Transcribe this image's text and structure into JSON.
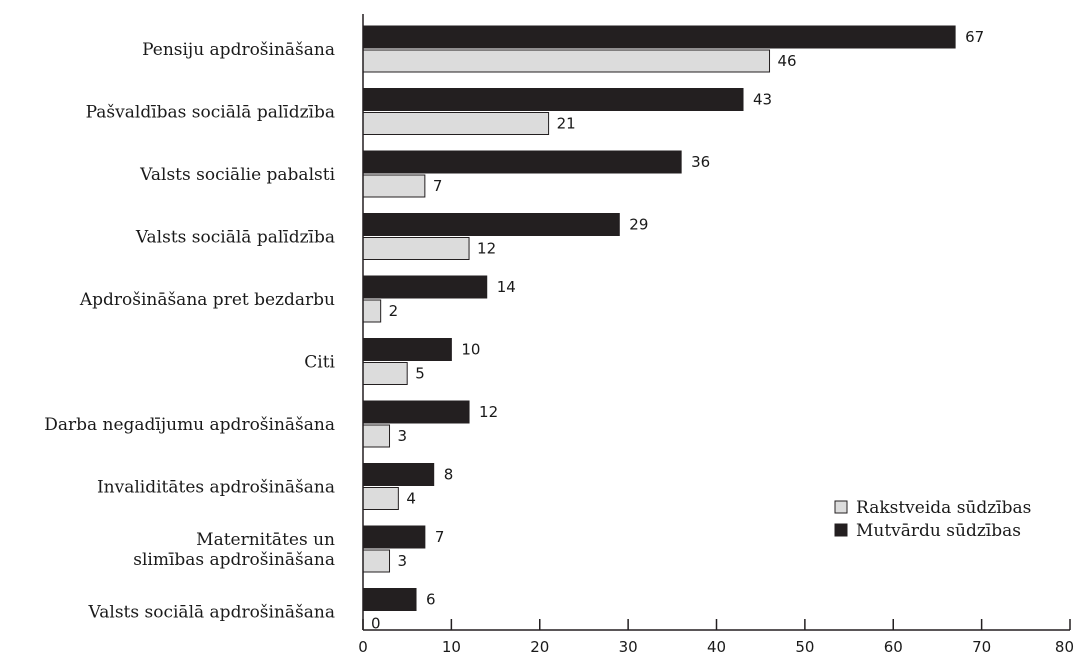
{
  "chart_data": {
    "type": "bar",
    "orientation": "horizontal",
    "categories": [
      [
        "Pensiju apdrošināšana"
      ],
      [
        "Pašvaldības sociālā palīdzība"
      ],
      [
        "Valsts sociālie pabalsti"
      ],
      [
        "Valsts sociālā palīdzība"
      ],
      [
        "Apdrošināšana pret bezdarbu"
      ],
      [
        "Citi"
      ],
      [
        "Darba negadījumu apdrošināšana"
      ],
      [
        "Invaliditātes apdrošināšana"
      ],
      [
        "Maternitātes un",
        "slimības apdrošināšana"
      ],
      [
        "Valsts sociālā apdrošināšana"
      ]
    ],
    "series": [
      {
        "name": "Mutvārdu sūdzības",
        "color": "#231f20",
        "values": [
          67,
          43,
          36,
          29,
          14,
          10,
          12,
          8,
          7,
          6
        ]
      },
      {
        "name": "Rakstveida sūdzības",
        "color": "#dcdcdc",
        "values": [
          46,
          21,
          7,
          12,
          2,
          5,
          3,
          4,
          3,
          0
        ]
      }
    ],
    "xlim": [
      0,
      80
    ],
    "xticks": [
      0,
      10,
      20,
      30,
      40,
      50,
      60,
      70,
      80
    ],
    "legend": {
      "position": "lower-right",
      "order": [
        "Rakstveida sūdzības",
        "Mutvārdu sūdzības"
      ]
    },
    "grid": false,
    "title": "",
    "xlabel": "",
    "ylabel": ""
  }
}
